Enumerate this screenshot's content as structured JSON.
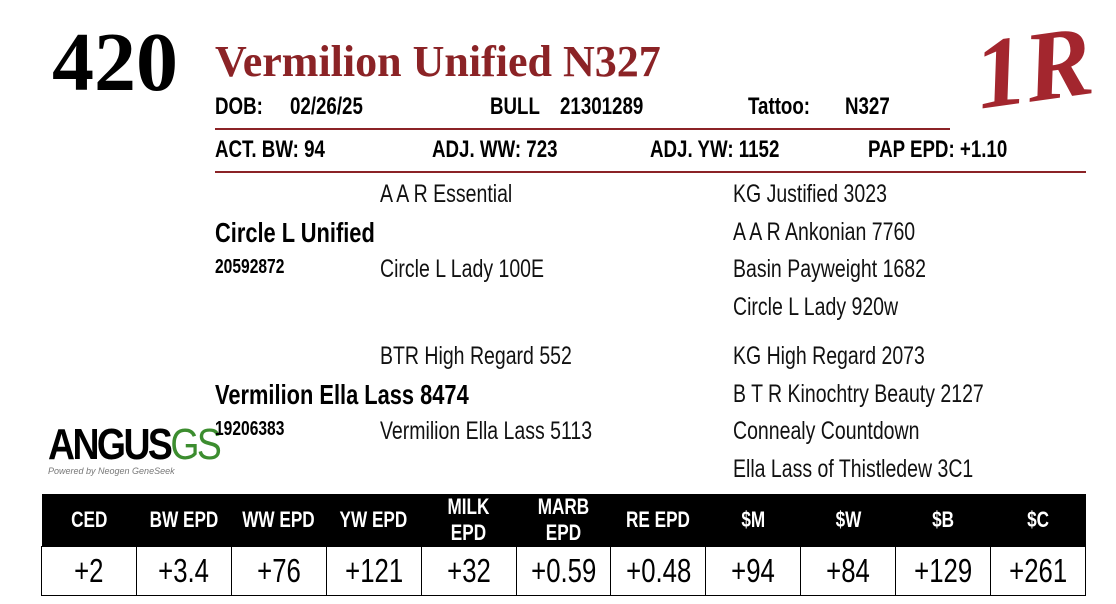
{
  "lot": "420",
  "name": "Vermilion Unified N327",
  "brand": "1R",
  "info": {
    "dob_label": "DOB:",
    "dob": "02/26/25",
    "sex": "BULL",
    "registration": "21301289",
    "tattoo_label": "Tattoo:",
    "tattoo": "N327"
  },
  "stats": [
    "ACT. BW: 94",
    "ADJ. WW: 723",
    "ADJ. YW: 1152",
    "PAP EPD: +1.10"
  ],
  "pedigree": {
    "sire": {
      "name": "Circle L Unified",
      "registration": "20592872",
      "sire": "A A R Essential",
      "dam": "Circle L Lady 100E",
      "grand": [
        "KG Justified 3023",
        "A A R Ankonian 7760",
        "Basin Payweight 1682",
        "Circle L Lady 920w"
      ]
    },
    "dam": {
      "name": "Vermilion Ella Lass 8474",
      "registration": "19206383",
      "sire": "BTR High Regard 552",
      "dam": "Vermilion Ella Lass 5113",
      "grand": [
        "KG High Regard 2073",
        "B T R Kinochtry Beauty 2127",
        "Connealy Countdown",
        "Ella Lass of Thistledew 3C1"
      ]
    }
  },
  "logo": {
    "word": "ANGUS",
    "suffix": "GS",
    "tagline": "Powered by Neogen GeneSeek"
  },
  "epd_table": {
    "headers": [
      "CED",
      "BW EPD",
      "WW EPD",
      "YW EPD",
      "MILK EPD",
      "MARB EPD",
      "RE EPD",
      "$M",
      "$W",
      "$B",
      "$C"
    ],
    "values": [
      "+2",
      "+3.4",
      "+76",
      "+121",
      "+32",
      "+0.59",
      "+0.48",
      "+94",
      "+84",
      "+129",
      "+261"
    ]
  }
}
